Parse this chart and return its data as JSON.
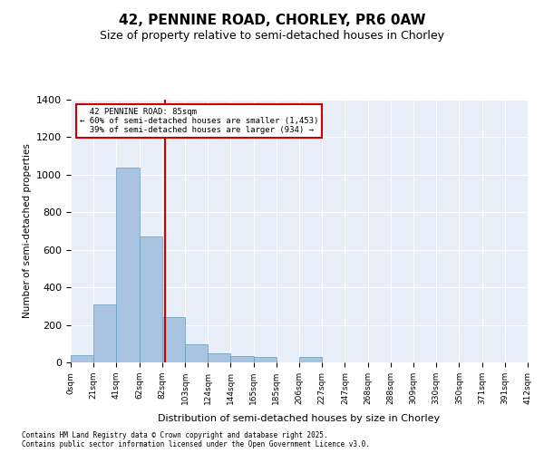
{
  "title_line1": "42, PENNINE ROAD, CHORLEY, PR6 0AW",
  "title_line2": "Size of property relative to semi-detached houses in Chorley",
  "xlabel": "Distribution of semi-detached houses by size in Chorley",
  "ylabel": "Number of semi-detached properties",
  "bin_labels": [
    "0sqm",
    "21sqm",
    "41sqm",
    "62sqm",
    "82sqm",
    "103sqm",
    "124sqm",
    "144sqm",
    "165sqm",
    "185sqm",
    "206sqm",
    "227sqm",
    "247sqm",
    "268sqm",
    "288sqm",
    "309sqm",
    "330sqm",
    "350sqm",
    "371sqm",
    "391sqm",
    "412sqm"
  ],
  "bar_values": [
    40,
    310,
    1040,
    670,
    240,
    95,
    50,
    35,
    30,
    0,
    30,
    0,
    0,
    0,
    0,
    0,
    0,
    0,
    0,
    0
  ],
  "bar_color": "#a8c4e0",
  "bar_edge_color": "#6699bb",
  "property_label": "42 PENNINE ROAD: 85sqm",
  "pct_smaller": 60,
  "count_smaller": 1453,
  "pct_larger": 39,
  "count_larger": 934,
  "vline_color": "#cc0000",
  "annotation_box_color": "#cc0000",
  "ylim": [
    0,
    1400
  ],
  "yticks": [
    0,
    200,
    400,
    600,
    800,
    1000,
    1200,
    1400
  ],
  "bg_color": "#e8eef8",
  "grid_color": "#ffffff",
  "footnote1": "Contains HM Land Registry data © Crown copyright and database right 2025.",
  "footnote2": "Contains public sector information licensed under the Open Government Licence v3.0."
}
